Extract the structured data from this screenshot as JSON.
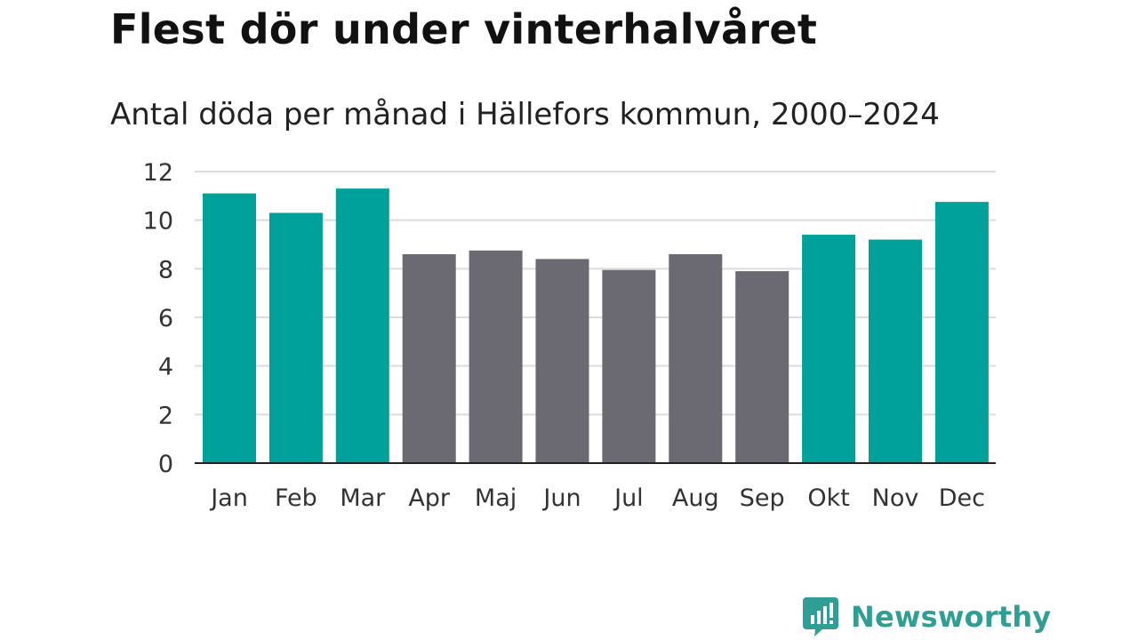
{
  "title": "Flest dör under vinterhalvåret",
  "subtitle": "Antal döda per månad i Hällefors kommun, 2000–2024",
  "colors": {
    "highlight": "#00a19a",
    "neutral": "#6b6a72",
    "grid": "#dcdcdc",
    "axis": "#222222",
    "brand": "#2f9e94"
  },
  "chart_data": {
    "type": "bar",
    "title": "Flest dör under vinterhalvåret",
    "subtitle": "Antal döda per månad i Hällefors kommun, 2000–2024",
    "xlabel": "",
    "ylabel": "",
    "ylim": [
      0,
      12
    ],
    "yticks": [
      0,
      2,
      4,
      6,
      8,
      10,
      12
    ],
    "grid": true,
    "categories": [
      "Jan",
      "Feb",
      "Mar",
      "Apr",
      "Maj",
      "Jun",
      "Jul",
      "Aug",
      "Sep",
      "Okt",
      "Nov",
      "Dec"
    ],
    "values": [
      11.1,
      10.3,
      11.3,
      8.6,
      8.75,
      8.4,
      7.95,
      8.6,
      7.9,
      9.4,
      9.2,
      10.75
    ],
    "highlighted": [
      true,
      true,
      true,
      false,
      false,
      false,
      false,
      false,
      false,
      true,
      true,
      true
    ]
  },
  "logo": {
    "text": "Newsworthy",
    "icon": "newsworthy-logo-icon"
  }
}
